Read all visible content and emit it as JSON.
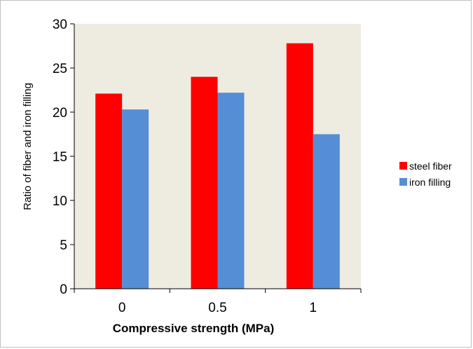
{
  "chart_data": {
    "type": "bar",
    "title": "",
    "xlabel": "Compressive strength (MPa)",
    "ylabel": "Ratio of fiber and iron filling",
    "categories": [
      "0",
      "0.5",
      "1"
    ],
    "series": [
      {
        "name": "steel fiber",
        "color": "#ff0000",
        "values": [
          22.1,
          24.0,
          27.8
        ]
      },
      {
        "name": "iron filling",
        "color": "#558ed5",
        "values": [
          20.3,
          22.2,
          17.5
        ]
      }
    ],
    "ylim": [
      0,
      30
    ],
    "yticks": [
      0,
      5,
      10,
      15,
      20,
      25,
      30
    ],
    "grid": false,
    "legend": "right",
    "plot_background": "#eeece1"
  }
}
